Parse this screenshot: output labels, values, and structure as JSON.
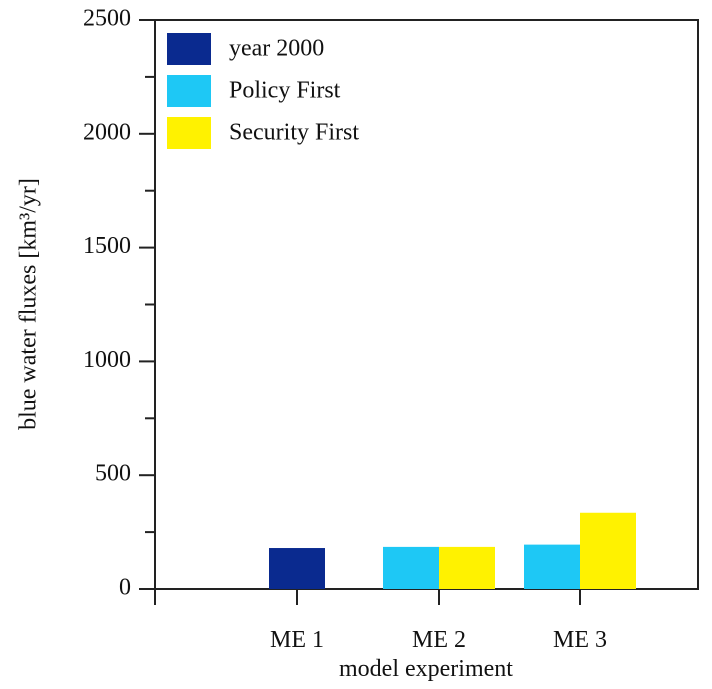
{
  "chart_data": {
    "type": "bar",
    "xlabel": "model experiment",
    "ylabel": "blue water fluxes [km³/yr]",
    "ylim": [
      0,
      2500
    ],
    "yticks": [
      0,
      500,
      1000,
      1500,
      2000,
      2500
    ],
    "categories": [
      "ME 1",
      "ME 2",
      "ME 3"
    ],
    "grid": false,
    "legend_position": "top-left",
    "series": [
      {
        "name": "year 2000",
        "color": "#0a2a8f",
        "values": [
          180,
          null,
          null
        ]
      },
      {
        "name": "Policy First",
        "color": "#1ec8f5",
        "values": [
          null,
          185,
          195
        ]
      },
      {
        "name": "Security First",
        "color": "#fff200",
        "values": [
          null,
          185,
          335
        ]
      }
    ]
  }
}
